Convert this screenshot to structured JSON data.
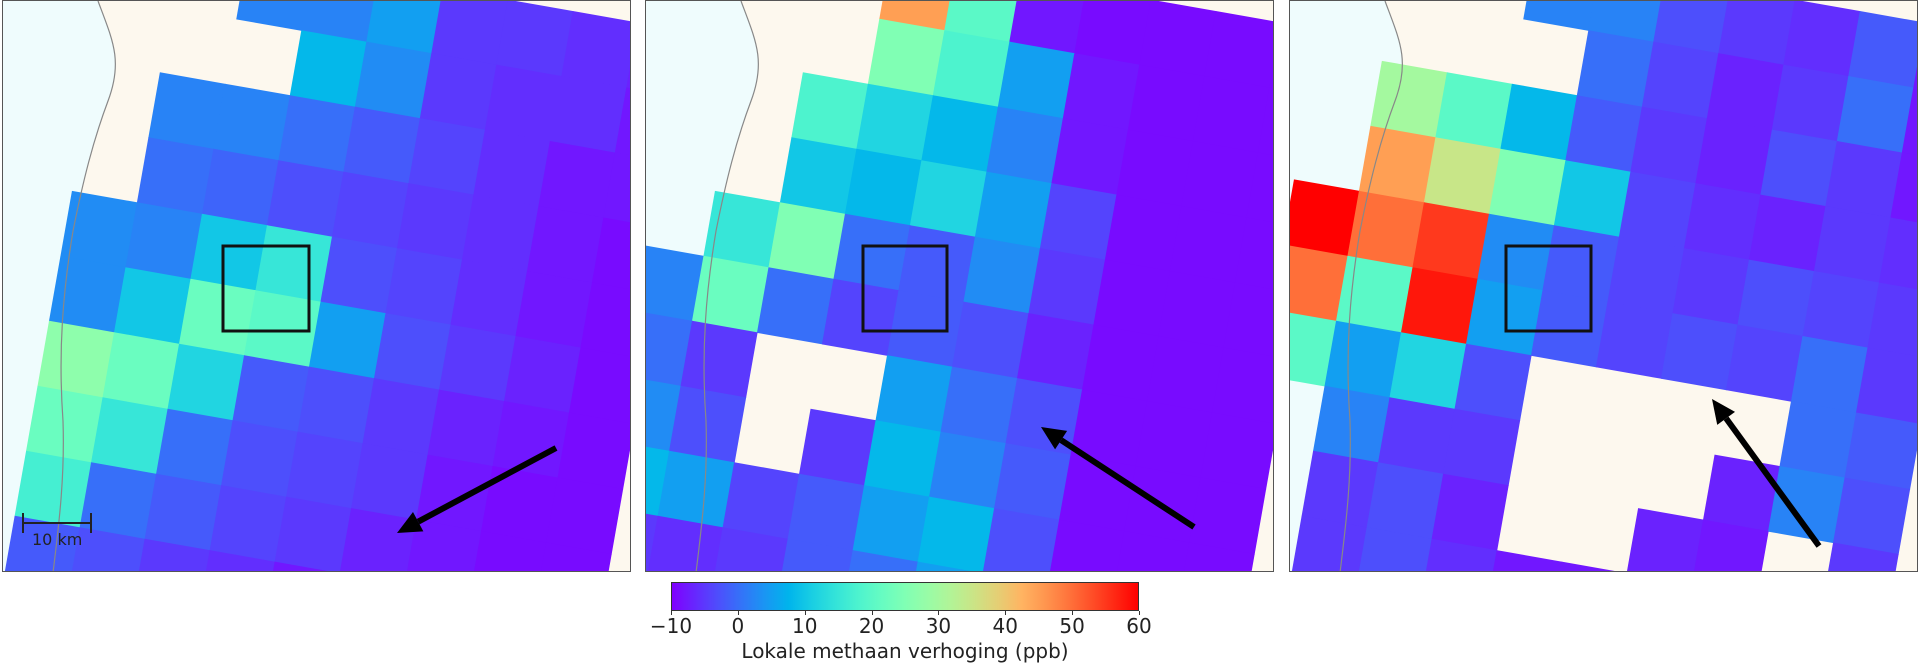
{
  "chart_data": {
    "type": "heatmap",
    "colormap": "rainbow",
    "colorbar": {
      "label": "Lokale methaan verhoging (ppb)",
      "range": [
        -10,
        60
      ],
      "ticks": [
        "−10",
        "0",
        "10",
        "20",
        "30",
        "40",
        "50",
        "60"
      ]
    },
    "scale_bar": "10 km",
    "colors": {
      "land": "#fdf8ee",
      "sea": "#effcfd",
      "coast": "#888888",
      "box": "#111111",
      "arrow": "#000000"
    },
    "panels": [
      {
        "wind_arrow_direction": "south-west",
        "grid": [
          [
            null,
            null,
            null,
            2,
            2,
            5,
            -5,
            -5,
            -6,
            -7
          ],
          [
            null,
            null,
            null,
            null,
            8,
            3,
            -5,
            -6,
            -6,
            -8
          ],
          [
            null,
            null,
            2,
            2,
            0,
            -2,
            -4,
            -6,
            -8,
            -8
          ],
          [
            null,
            null,
            0,
            -1,
            -3,
            -4,
            -5,
            -6,
            -8,
            -9
          ],
          [
            null,
            3,
            2,
            10,
            15,
            -3,
            -4,
            -6,
            -8,
            -9
          ],
          [
            null,
            3,
            10,
            22,
            20,
            5,
            -3,
            -5,
            -7,
            -9
          ],
          [
            null,
            27,
            22,
            12,
            -2,
            -3,
            -5,
            -7,
            -8,
            -9
          ],
          [
            null,
            22,
            15,
            0,
            -3,
            -4,
            -5,
            -8,
            -9,
            -9
          ],
          [
            null,
            17,
            0,
            -2,
            -4,
            -5,
            -7,
            -8,
            -9,
            -9
          ],
          [
            null,
            -2,
            -3,
            -5,
            -6,
            -8,
            -9,
            -9,
            -9,
            null
          ]
        ]
      },
      {
        "wind_arrow_direction": "north-west",
        "grid": [
          [
            null,
            null,
            null,
            45,
            20,
            -8,
            -9,
            -9,
            -9,
            -9
          ],
          [
            null,
            null,
            null,
            25,
            18,
            5,
            -8,
            -9,
            -9,
            -9
          ],
          [
            null,
            null,
            18,
            12,
            8,
            2,
            -8,
            -9,
            -9,
            -9
          ],
          [
            null,
            null,
            10,
            8,
            12,
            5,
            -4,
            -9,
            -9,
            -9
          ],
          [
            null,
            15,
            25,
            0,
            -2,
            3,
            -5,
            -9,
            -9,
            -9
          ],
          [
            2,
            22,
            0,
            -4,
            -2,
            -3,
            -7,
            -9,
            -9,
            -9
          ],
          [
            0,
            -5,
            null,
            null,
            5,
            0,
            -3,
            -9,
            -9,
            -9
          ],
          [
            3,
            -3,
            null,
            -5,
            8,
            2,
            -2,
            -9,
            -9,
            -9
          ],
          [
            8,
            5,
            -4,
            -2,
            5,
            8,
            -3,
            -9,
            -9,
            -9
          ],
          [
            -5,
            -6,
            -5,
            -2,
            0,
            5,
            -5,
            -9,
            -9,
            -9
          ]
        ]
      },
      {
        "wind_arrow_direction": "north-west",
        "grid": [
          [
            null,
            null,
            null,
            2,
            2,
            -3,
            -5,
            -6,
            -2,
            -8
          ],
          [
            null,
            null,
            null,
            null,
            0,
            -4,
            -7,
            -5,
            0,
            -8
          ],
          [
            null,
            30,
            20,
            8,
            -2,
            -5,
            -7,
            -3,
            -5,
            -8
          ],
          [
            null,
            45,
            35,
            25,
            10,
            -4,
            -6,
            -7,
            -5,
            -6
          ],
          [
            60,
            50,
            55,
            3,
            -2,
            -4,
            -5,
            -3,
            -4,
            -5
          ],
          [
            50,
            20,
            58,
            5,
            -2,
            -4,
            -3,
            -4,
            0,
            -5
          ],
          [
            20,
            5,
            12,
            -3,
            null,
            null,
            null,
            null,
            0,
            -2
          ],
          [
            null,
            2,
            -5,
            -5,
            null,
            null,
            null,
            -7,
            2,
            -3
          ],
          [
            null,
            -5,
            -3,
            -7,
            null,
            null,
            -7,
            -8,
            null,
            -5
          ],
          [
            null,
            -5,
            -3,
            -6,
            -8,
            -8,
            -8,
            -8,
            null,
            -6
          ]
        ]
      }
    ]
  }
}
